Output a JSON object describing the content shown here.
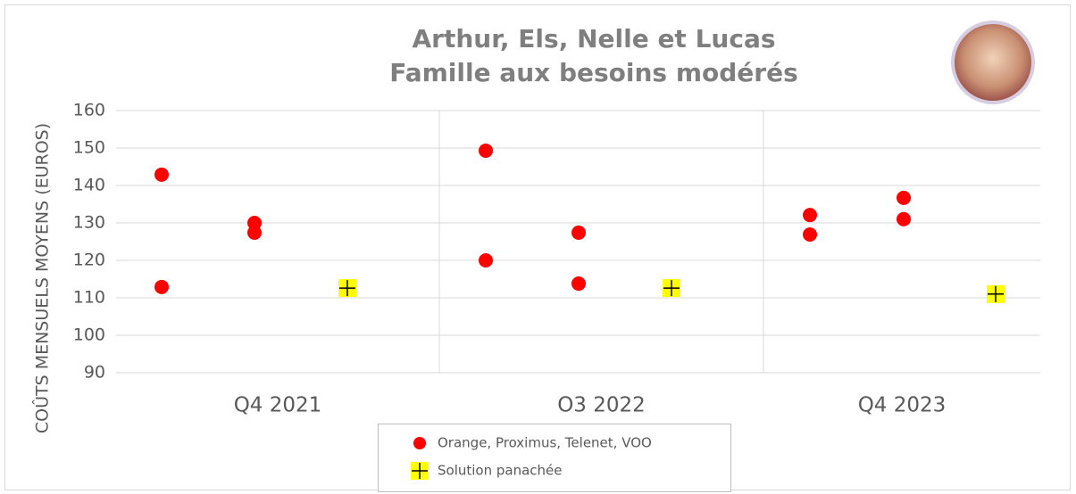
{
  "chart_data": {
    "type": "grouped_scatter",
    "title": [
      "Arthur, Els, Nelle et Lucas",
      "Famille aux besoins modérés"
    ],
    "y_label": "COÛTS MENSUELS MOYENS (EUROS)",
    "categories": [
      "Q4 2021",
      "O3 2022",
      "Q4 2023"
    ],
    "ylim": [
      90,
      160
    ],
    "yticks": [
      90,
      100,
      110,
      120,
      130,
      140,
      150,
      160
    ],
    "grid": true,
    "series": [
      {
        "name": "Orange, Proximus, Telenet, VOO",
        "color": "#ff0000",
        "marker": "circle",
        "values": [
          [
            [
              142.9,
              112.9
            ],
            [
              130,
              127.4
            ]
          ],
          [
            [
              149.3,
              120
            ],
            [
              127.4,
              113.8
            ]
          ],
          [
            [
              132.1,
              126.9
            ],
            [
              136.7,
              131
            ]
          ]
        ]
      },
      {
        "name": "Solution panachée",
        "color": "#ffff00",
        "marker": "plus",
        "values": [
          112.6,
          112.6,
          111
        ]
      }
    ]
  }
}
